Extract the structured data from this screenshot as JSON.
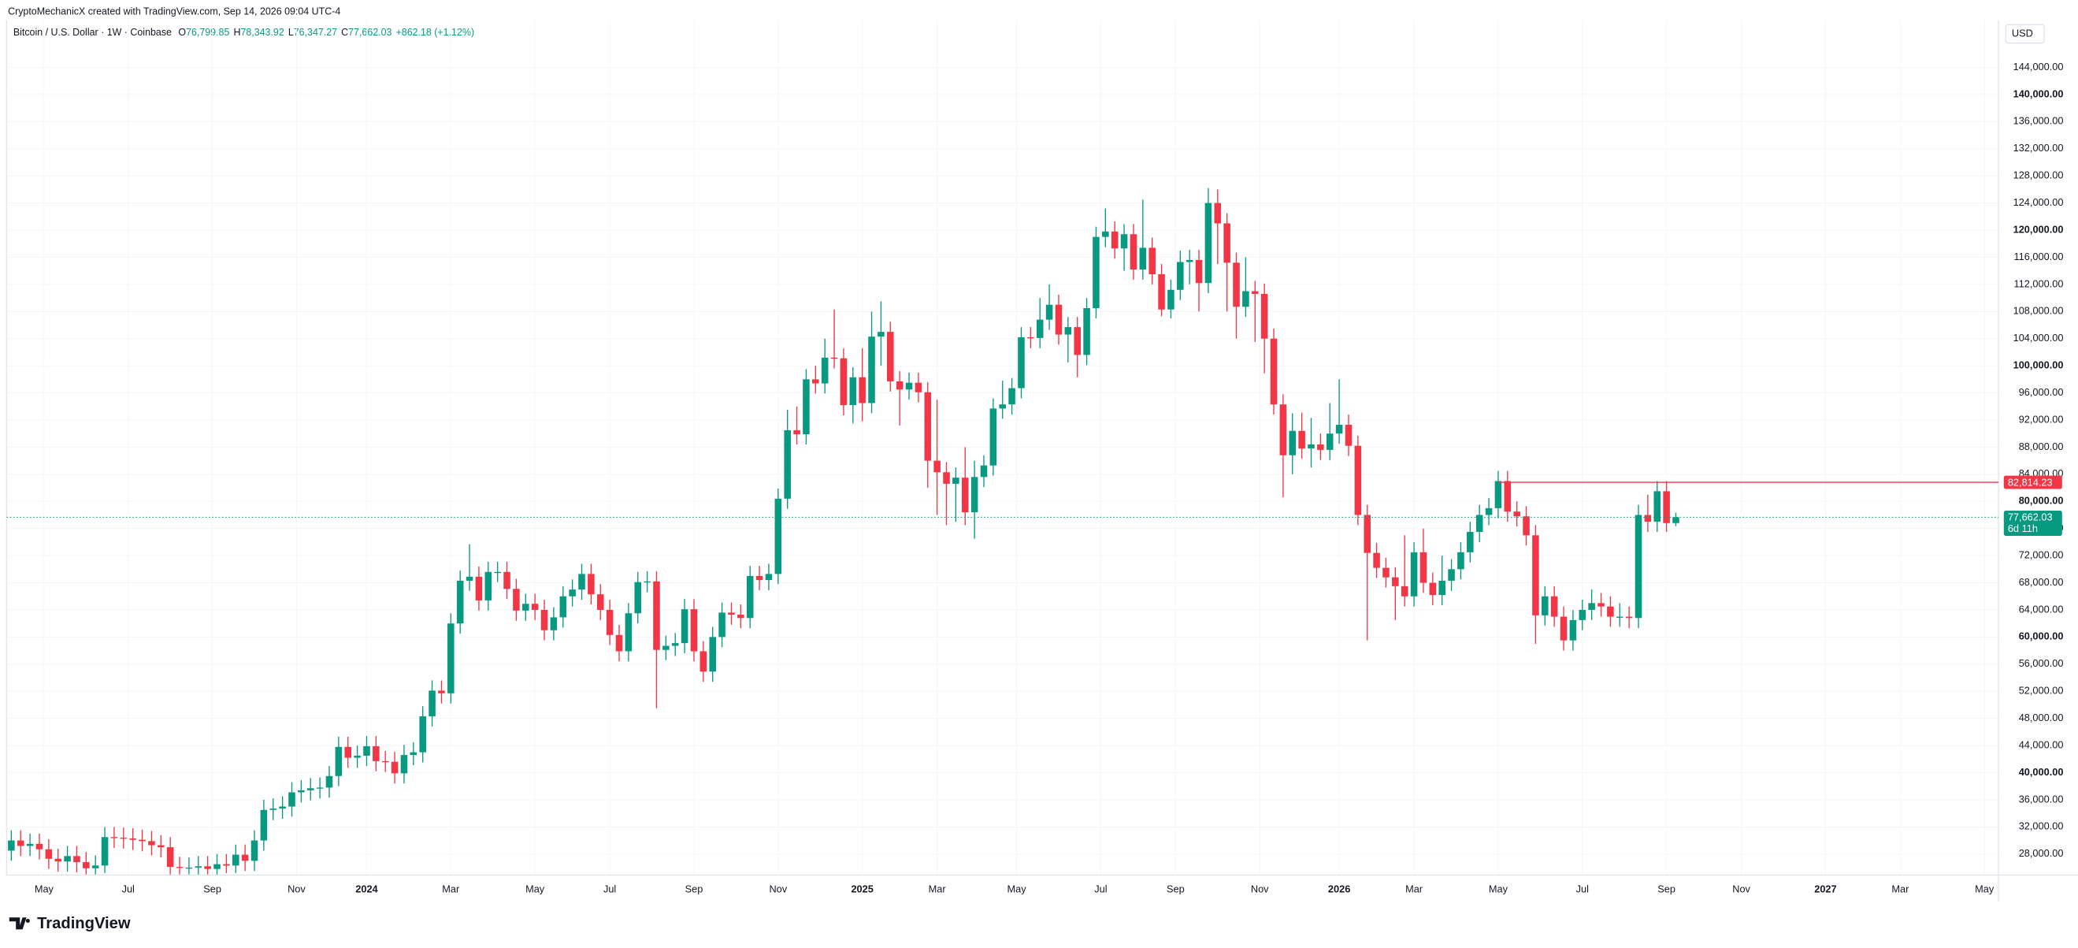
{
  "header": {
    "credit": "CryptoMechanicX created with TradingView.com, Sep 14, 2026 09:04 UTC-4",
    "symbol": "Bitcoin / U.S. Dollar · 1W · Coinbase",
    "ohlc": [
      {
        "key": "O",
        "value": "76,799.85"
      },
      {
        "key": "H",
        "value": "78,343.92"
      },
      {
        "key": "L",
        "value": "76,347.27"
      },
      {
        "key": "C",
        "value": "77,662.03"
      }
    ],
    "change": "+862.18 (+1.12%)"
  },
  "brand": "TradingView",
  "chart_data": {
    "type": "candlestick",
    "up_color": "#089981",
    "down_color": "#f23645",
    "open": [
      28500,
      30000,
      29200,
      29500,
      28700,
      27300,
      26900,
      27700,
      26800,
      25900,
      26300,
      30500,
      30400,
      30300,
      30100,
      29900,
      29300,
      29000,
      26100,
      26000,
      26000,
      26200,
      25800,
      26500,
      26300,
      27900,
      27000,
      30000,
      34500,
      34700,
      35000,
      37100,
      37400,
      37700,
      37800,
      39500,
      43800,
      42200,
      42500,
      43900,
      41700,
      41600,
      39900,
      42600,
      43000,
      48300,
      52100,
      51700,
      62000,
      68300,
      68900,
      65400,
      69600,
      69600,
      67100,
      63900,
      64900,
      64000,
      61000,
      62900,
      66000,
      67000,
      69300,
      66300,
      64000,
      60300,
      57900,
      63500,
      68100,
      68200,
      58100,
      58700,
      59100,
      64100,
      57900,
      54900,
      60000,
      63600,
      63300,
      62800,
      69000,
      68400,
      69300,
      80400,
      90500,
      89900,
      98000,
      97400,
      101200,
      101100,
      94200,
      98300,
      94500,
      104300,
      105000,
      97700,
      96500,
      97500,
      96100,
      86000,
      84300,
      82600,
      83500,
      78400,
      83600,
      85300,
      93700,
      94300,
      96700,
      104200,
      104100,
      106800,
      109000,
      104600,
      105700,
      101600,
      108500,
      119000,
      119800,
      117300,
      119400,
      114200,
      117400,
      113500,
      108300,
      111200,
      115300,
      115600,
      112200,
      124000,
      121000,
      115200,
      108700,
      111000,
      110600,
      104000,
      94300,
      86800,
      90400,
      87800,
      88400,
      87600,
      90000,
      91300,
      88200,
      78000,
      72400,
      70200,
      68800,
      67500,
      66000,
      72500,
      68000,
      66200,
      68300,
      70000,
      72500,
      75500,
      78000,
      79000,
      83000,
      78500,
      77800,
      75000,
      63200,
      66000,
      63000,
      59500,
      62500,
      64000,
      65000,
      64500,
      63000,
      63000,
      62800,
      78000,
      77000,
      81500,
      76799.85
    ],
    "high": [
      31500,
      31500,
      31000,
      31000,
      30200,
      28800,
      29200,
      29200,
      28300,
      27800,
      32000,
      32000,
      31900,
      31800,
      31600,
      31400,
      30800,
      30500,
      27600,
      27500,
      27700,
      27700,
      28000,
      28000,
      29400,
      29400,
      31500,
      36000,
      36200,
      36500,
      38600,
      38900,
      39200,
      39300,
      41000,
      45300,
      45300,
      44000,
      45400,
      45400,
      43200,
      43100,
      44100,
      44500,
      49800,
      53600,
      53600,
      63500,
      69800,
      73700,
      70400,
      71100,
      71100,
      71100,
      68600,
      66400,
      66400,
      65500,
      64400,
      67500,
      68500,
      70800,
      70800,
      67800,
      65500,
      61800,
      65000,
      69600,
      69700,
      69700,
      60200,
      60600,
      65600,
      65600,
      59400,
      61500,
      65100,
      65100,
      64800,
      70500,
      70500,
      70800,
      81900,
      93500,
      94000,
      99500,
      100000,
      104000,
      108300,
      102600,
      99800,
      102600,
      108000,
      109500,
      106500,
      99200,
      99000,
      99000,
      97600,
      95000,
      85800,
      85000,
      88000,
      86000,
      86800,
      95200,
      97800,
      98200,
      105700,
      105700,
      110000,
      112000,
      110500,
      107200,
      107200,
      110000,
      120500,
      123200,
      121300,
      120900,
      120900,
      124500,
      118900,
      115000,
      112700,
      117000,
      117100,
      117100,
      126200,
      126000,
      122500,
      116700,
      116000,
      112500,
      112100,
      105500,
      95800,
      93000,
      93100,
      92300,
      90000,
      94500,
      98000,
      92800,
      89700,
      79500,
      73900,
      71700,
      70300,
      75000,
      74000,
      76000,
      69500,
      72000,
      71500,
      74000,
      77000,
      79500,
      80500,
      84500,
      84500,
      80000,
      79300,
      76500,
      67500,
      67500,
      64500,
      64000,
      65500,
      67000,
      66500,
      66000,
      65000,
      64500,
      79500,
      81000,
      83000,
      83000,
      78343.92
    ],
    "low": [
      27000,
      27700,
      27700,
      27200,
      25800,
      25400,
      25400,
      25300,
      25000,
      25000,
      25200,
      28900,
      28800,
      28600,
      28400,
      27800,
      27500,
      25000,
      25000,
      25000,
      25000,
      25000,
      25000,
      25200,
      25200,
      25500,
      25500,
      28500,
      33000,
      33200,
      33500,
      35600,
      35900,
      36200,
      36300,
      38000,
      40700,
      40700,
      41000,
      40200,
      40100,
      38400,
      38400,
      41100,
      41500,
      46800,
      50200,
      50200,
      60500,
      66800,
      63900,
      63900,
      68100,
      65600,
      62400,
      62400,
      62500,
      59500,
      59500,
      61400,
      64500,
      65500,
      64800,
      62500,
      58800,
      56400,
      56400,
      62000,
      66600,
      49500,
      56600,
      57200,
      57600,
      56400,
      53400,
      53400,
      58500,
      61800,
      61300,
      61300,
      66900,
      66900,
      67800,
      78900,
      88400,
      88400,
      95900,
      95900,
      99600,
      92700,
      91500,
      91800,
      93000,
      100000,
      96200,
      91200,
      95000,
      94600,
      82000,
      78000,
      76500,
      77000,
      76500,
      74500,
      82100,
      83800,
      92200,
      92800,
      95200,
      102600,
      102600,
      105300,
      103100,
      100500,
      98300,
      100100,
      107000,
      117500,
      115800,
      114000,
      112700,
      112700,
      112000,
      107300,
      107000,
      109700,
      112000,
      108000,
      110700,
      115000,
      108000,
      104000,
      107200,
      103500,
      98900,
      92800,
      80600,
      84000,
      86300,
      85000,
      86100,
      86100,
      88500,
      86700,
      76500,
      59500,
      68700,
      67300,
      62500,
      64500,
      64500,
      66500,
      64700,
      64700,
      66800,
      68500,
      71000,
      74000,
      76500,
      77500,
      77000,
      76300,
      73500,
      59000,
      61700,
      61500,
      58000,
      58000,
      61000,
      62500,
      63000,
      61500,
      61500,
      61300,
      61300,
      75500,
      75500,
      75500,
      76347.27
    ],
    "close": [
      30000,
      29200,
      29500,
      28700,
      27300,
      26900,
      27700,
      26800,
      25900,
      26300,
      30500,
      30400,
      30300,
      30100,
      29900,
      29300,
      29000,
      26100,
      26000,
      26000,
      26200,
      25800,
      26500,
      26300,
      27900,
      27000,
      30000,
      34500,
      34700,
      35000,
      37100,
      37400,
      37700,
      37800,
      39500,
      43800,
      42200,
      42500,
      43900,
      41700,
      41600,
      39900,
      42600,
      43000,
      48300,
      52100,
      51700,
      62000,
      68300,
      68900,
      65400,
      69600,
      69600,
      67100,
      63900,
      64900,
      64000,
      61000,
      62900,
      66000,
      67000,
      69300,
      66300,
      64000,
      60300,
      57900,
      63500,
      68100,
      68200,
      58100,
      58700,
      59100,
      64100,
      57900,
      54900,
      60000,
      63600,
      63300,
      62800,
      69000,
      68400,
      69300,
      80400,
      90500,
      89900,
      98000,
      97400,
      101200,
      101100,
      94200,
      98300,
      94500,
      104300,
      105000,
      97700,
      96500,
      97500,
      96100,
      86000,
      84300,
      82600,
      83500,
      78400,
      83600,
      85300,
      93700,
      94300,
      96700,
      104200,
      104100,
      106800,
      109000,
      104600,
      105700,
      101600,
      108500,
      119000,
      119800,
      117300,
      119400,
      114200,
      117400,
      113500,
      108300,
      111200,
      115300,
      115600,
      112200,
      124000,
      121000,
      115200,
      108700,
      111000,
      110600,
      104000,
      94300,
      86800,
      90400,
      87800,
      88400,
      87600,
      90000,
      91300,
      88200,
      78000,
      72400,
      70200,
      68800,
      67500,
      66000,
      72500,
      68000,
      66200,
      68300,
      70000,
      72500,
      75500,
      78000,
      79000,
      83000,
      78500,
      77800,
      75000,
      63200,
      66000,
      63000,
      59500,
      62500,
      64000,
      65000,
      64500,
      63000,
      63000,
      62800,
      78000,
      77000,
      81500,
      76800,
      77662.03
    ],
    "xlim": [
      -0.5,
      212.5
    ],
    "xticks": [
      {
        "value": 3.5,
        "label": "May"
      },
      {
        "value": 12.5,
        "label": "Jul"
      },
      {
        "value": 21.5,
        "label": "Sep"
      },
      {
        "value": 30.5,
        "label": "Nov"
      },
      {
        "value": 38,
        "label": "2024"
      },
      {
        "value": 47,
        "label": "Mar"
      },
      {
        "value": 56,
        "label": "May"
      },
      {
        "value": 64,
        "label": "Jul"
      },
      {
        "value": 73,
        "label": "Sep"
      },
      {
        "value": 82,
        "label": "Nov"
      },
      {
        "value": 91,
        "label": "2025"
      },
      {
        "value": 99,
        "label": "Mar"
      },
      {
        "value": 107.5,
        "label": "May"
      },
      {
        "value": 116.5,
        "label": "Jul"
      },
      {
        "value": 124.5,
        "label": "Sep"
      },
      {
        "value": 133.5,
        "label": "Nov"
      },
      {
        "value": 142,
        "label": "2026"
      },
      {
        "value": 150,
        "label": "Mar"
      },
      {
        "value": 159,
        "label": "May"
      },
      {
        "value": 168,
        "label": "Jul"
      },
      {
        "value": 177,
        "label": "Sep"
      },
      {
        "value": 185,
        "label": "Nov"
      },
      {
        "value": 194,
        "label": "2027"
      },
      {
        "value": 202,
        "label": "Mar"
      },
      {
        "value": 211,
        "label": "May"
      }
    ],
    "ylim": [
      24900,
      151000
    ],
    "yticks": [
      {
        "value": 28000,
        "label": "28,000.00"
      },
      {
        "value": 32000,
        "label": "32,000.00"
      },
      {
        "value": 36000,
        "label": "36,000.00"
      },
      {
        "value": 40000,
        "label": "40,000.00"
      },
      {
        "value": 44000,
        "label": "44,000.00"
      },
      {
        "value": 48000,
        "label": "48,000.00"
      },
      {
        "value": 52000,
        "label": "52,000.00"
      },
      {
        "value": 56000,
        "label": "56,000.00"
      },
      {
        "value": 60000,
        "label": "60,000.00"
      },
      {
        "value": 64000,
        "label": "64,000.00"
      },
      {
        "value": 68000,
        "label": "68,000.00"
      },
      {
        "value": 72000,
        "label": "72,000.00"
      },
      {
        "value": 76000,
        "label": "76,000.00"
      },
      {
        "value": 80000,
        "label": "80,000.00"
      },
      {
        "value": 84000,
        "label": "84,000.00"
      },
      {
        "value": 88000,
        "label": "88,000.00"
      },
      {
        "value": 92000,
        "label": "92,000.00"
      },
      {
        "value": 96000,
        "label": "96,000.00"
      },
      {
        "value": 100000,
        "label": "100,000.00"
      },
      {
        "value": 104000,
        "label": "104,000.00"
      },
      {
        "value": 108000,
        "label": "108,000.00"
      },
      {
        "value": 112000,
        "label": "112,000.00"
      },
      {
        "value": 116000,
        "label": "116,000.00"
      },
      {
        "value": 120000,
        "label": "120,000.00"
      },
      {
        "value": 124000,
        "label": "124,000.00"
      },
      {
        "value": 128000,
        "label": "128,000.00"
      },
      {
        "value": 132000,
        "label": "132,000.00"
      },
      {
        "value": 136000,
        "label": "136,000.00"
      },
      {
        "value": 140000,
        "label": "140,000.00"
      },
      {
        "value": 144000,
        "label": "144,000.00"
      }
    ],
    "currency": "USD",
    "last_price": {
      "value": 77662.03,
      "label": "77,662.03"
    },
    "countdown": "6d 11h",
    "level": {
      "value": 82814.23,
      "label": "82,814.23"
    }
  }
}
